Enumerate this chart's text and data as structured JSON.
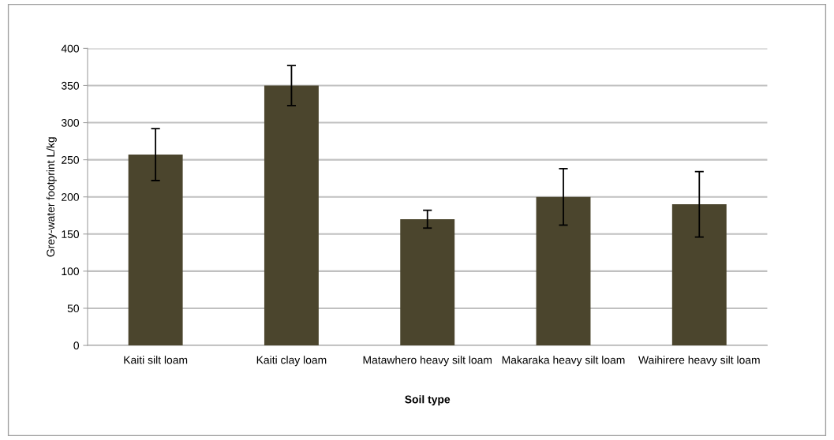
{
  "chart_data": {
    "type": "bar",
    "xlabel": "Soil type",
    "ylabel": "Grey-water footprint L/kg",
    "categories": [
      "Kaiti silt loam",
      "Kaiti clay loam",
      "Matawhero heavy silt loam",
      "Makaraka heavy silt loam",
      "Waihirere heavy silt loam"
    ],
    "values": [
      257,
      350,
      170,
      200,
      190
    ],
    "errors": [
      35,
      27,
      12,
      38,
      44
    ],
    "color": "#4b452d",
    "ylim": [
      0,
      400
    ],
    "yticks": [
      0,
      50,
      100,
      150,
      200,
      250,
      300,
      350,
      400
    ],
    "grid": "y",
    "legend": false
  }
}
